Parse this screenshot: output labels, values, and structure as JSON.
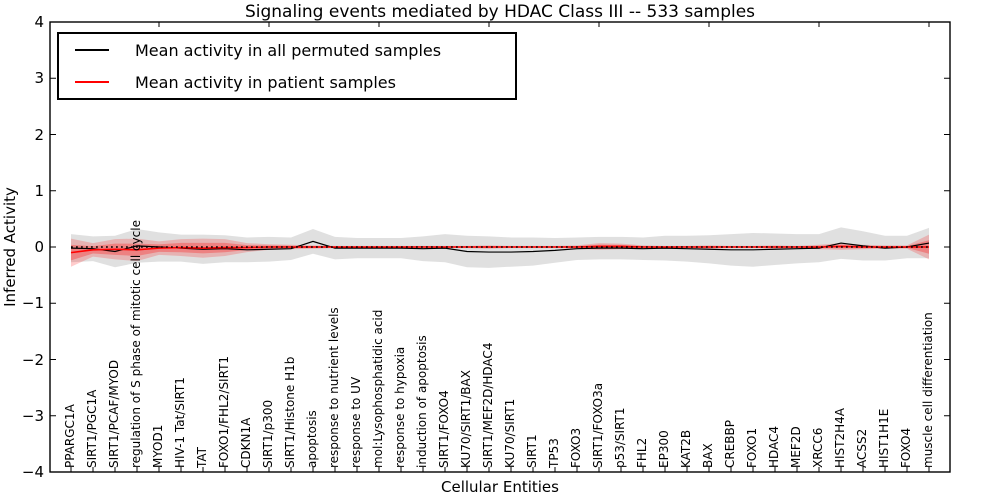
{
  "chart_data": {
    "type": "line",
    "title": "Signaling events mediated by HDAC Class III -- 533 samples",
    "xlabel": "Cellular Entities",
    "ylabel": "Inferred Activity",
    "ylim": [
      -4,
      4
    ],
    "yticks": {
      "values": [
        4,
        3,
        2,
        1,
        0,
        -1,
        -2,
        -3,
        -4
      ],
      "labels": [
        "4",
        "3",
        "2",
        "1",
        "0",
        "−1",
        "−2",
        "−3",
        "−4"
      ]
    },
    "grid": false,
    "legend_position": "upper left",
    "x_major_tick_every": 5,
    "categories": [
      "PPARGC1A",
      "SIRT1/PGC1A",
      "SIRT1/PCAF/MYOD",
      "regulation of S phase of mitotic cell cycle",
      "MYOD1",
      "HIV-1 Tat/SIRT1",
      "TAT",
      "FOXO1/FHL2/SIRT1",
      "CDKN1A",
      "SIRT1/p300",
      "SIRT1/Histone H1b",
      "apoptosis",
      "response to nutrient levels",
      "response to UV",
      "mol:Lysophosphatidic acid",
      "response to hypoxia",
      "induction of apoptosis",
      "SIRT1/FOXO4",
      "KU70/SIRT1/BAX",
      "SIRT1/MEF2D/HDAC4",
      "KU70/SIRT1",
      "SIRT1",
      "TP53",
      "FOXO3",
      "SIRT1/FOXO3a",
      "p53/SIRT1",
      "FHL2",
      "EP300",
      "KAT2B",
      "BAX",
      "CREBBP",
      "FOXO1",
      "HDAC4",
      "MEF2D",
      "XRCC6",
      "HIST2H4A",
      "ACSS2",
      "HIST1H1E",
      "FOXO4",
      "muscle cell differentiation"
    ],
    "series": [
      {
        "name": "Mean activity in all permuted samples",
        "color": "#000000",
        "style": "solid",
        "values": [
          -0.02,
          -0.03,
          -0.08,
          0.02,
          0.0,
          -0.02,
          -0.04,
          -0.03,
          -0.05,
          -0.04,
          -0.03,
          0.1,
          -0.02,
          -0.02,
          -0.02,
          -0.02,
          -0.03,
          -0.02,
          -0.08,
          -0.09,
          -0.09,
          -0.08,
          -0.06,
          -0.03,
          -0.02,
          -0.02,
          -0.03,
          -0.02,
          -0.03,
          -0.04,
          -0.05,
          -0.05,
          -0.04,
          -0.03,
          -0.02,
          0.07,
          0.02,
          -0.02,
          0.0,
          0.07
        ],
        "band_std": [
          0.25,
          0.22,
          0.28,
          0.3,
          0.26,
          0.24,
          0.26,
          0.24,
          0.22,
          0.22,
          0.2,
          0.22,
          0.2,
          0.18,
          0.18,
          0.18,
          0.22,
          0.25,
          0.28,
          0.28,
          0.26,
          0.25,
          0.22,
          0.2,
          0.2,
          0.2,
          0.2,
          0.22,
          0.23,
          0.25,
          0.28,
          0.3,
          0.28,
          0.26,
          0.25,
          0.28,
          0.26,
          0.22,
          0.2,
          0.27
        ],
        "band_color": "#000000",
        "band_opacity": 0.12
      },
      {
        "name": "Mean activity in patient samples",
        "color": "#ff0000",
        "style": "solid",
        "values": [
          -0.1,
          -0.05,
          -0.04,
          -0.05,
          -0.02,
          -0.01,
          -0.02,
          -0.01,
          -0.01,
          0.0,
          0.0,
          0.0,
          0.0,
          0.0,
          0.0,
          0.0,
          0.0,
          0.0,
          0.0,
          0.0,
          0.0,
          0.0,
          0.0,
          0.0,
          0.01,
          0.01,
          0.0,
          0.0,
          0.0,
          0.0,
          0.0,
          0.0,
          0.0,
          0.0,
          0.0,
          0.01,
          0.0,
          0.0,
          0.0,
          0.0
        ],
        "band_std": [
          0.25,
          0.12,
          0.18,
          0.2,
          0.12,
          0.15,
          0.17,
          0.15,
          0.08,
          0.05,
          0.04,
          0.03,
          0.02,
          0.02,
          0.02,
          0.02,
          0.02,
          0.02,
          0.02,
          0.03,
          0.02,
          0.02,
          0.02,
          0.03,
          0.06,
          0.05,
          0.03,
          0.02,
          0.02,
          0.03,
          0.02,
          0.02,
          0.03,
          0.02,
          0.04,
          0.06,
          0.04,
          0.03,
          0.03,
          0.22
        ],
        "band_color": "#ff0000",
        "band_opacity": 0.2,
        "band_inner_scale": 0.55,
        "band_inner_opacity": 0.28
      }
    ],
    "zero_line": {
      "y": 0,
      "style": "dotted",
      "color": "#000000"
    }
  }
}
